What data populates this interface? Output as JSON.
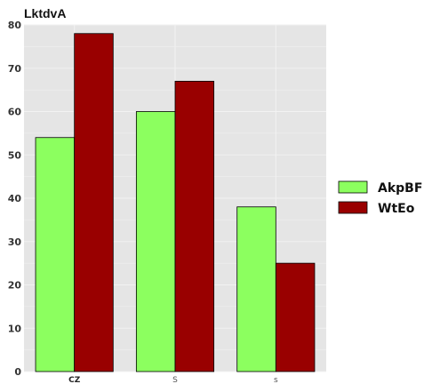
{
  "chart_data": {
    "type": "bar",
    "title": "LktdvA",
    "categories": [
      "CZ",
      "S",
      "s"
    ],
    "series": [
      {
        "name": "AkpBF",
        "values": [
          54,
          60,
          38
        ]
      },
      {
        "name": "WtEo",
        "values": [
          78,
          67,
          25
        ]
      }
    ],
    "ylim": [
      0,
      80
    ],
    "yticks": [
      0,
      10,
      20,
      30,
      40,
      50,
      60,
      70,
      80
    ],
    "grid": true,
    "legend": "right"
  },
  "colors": {
    "series": [
      "#8cff5f",
      "#990000"
    ],
    "panel": "#e5e5e5",
    "grid": "#f2f2f2"
  }
}
